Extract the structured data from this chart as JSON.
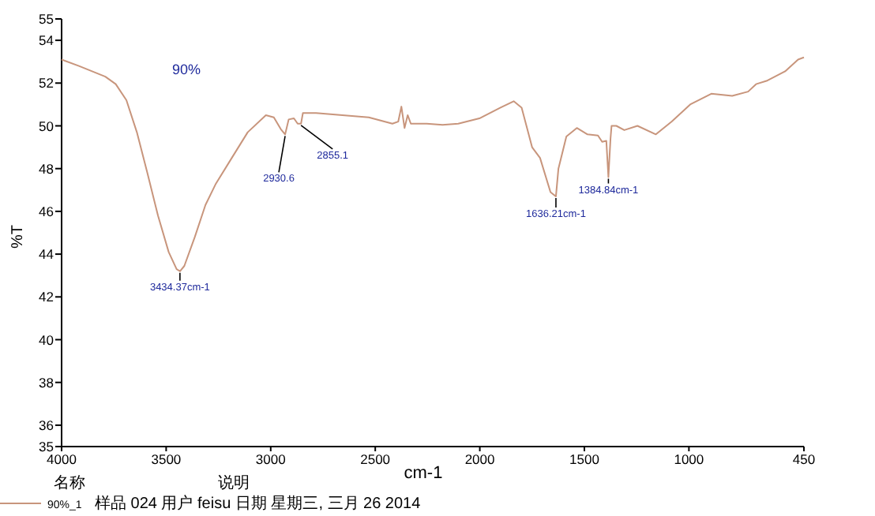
{
  "chart_data": {
    "type": "line",
    "title": "90%",
    "xlabel": "cm-1",
    "ylabel": "%T",
    "xlim": [
      4000,
      450
    ],
    "ylim": [
      35,
      55
    ],
    "xticks": [
      4000,
      3500,
      3000,
      2500,
      2000,
      1500,
      1000,
      450
    ],
    "yticks": [
      35,
      36,
      38,
      40,
      42,
      44,
      46,
      48,
      50,
      52,
      54,
      55
    ],
    "legend": "bottom",
    "series": [
      {
        "name": "90%_1",
        "color": "#c8957c",
        "x": [
          4000,
          3917,
          3791,
          3741,
          3690,
          3640,
          3590,
          3539,
          3488,
          3450,
          3434,
          3413,
          3363,
          3312,
          3262,
          3186,
          3110,
          3023,
          2985,
          2952,
          2931,
          2914,
          2889,
          2871,
          2855,
          2846,
          2783,
          2531,
          2418,
          2390,
          2375,
          2360,
          2345,
          2330,
          2254,
          2178,
          2103,
          2002,
          1901,
          1838,
          1800,
          1750,
          1712,
          1662,
          1636,
          1624,
          1586,
          1536,
          1485,
          1435,
          1415,
          1395,
          1385,
          1375,
          1370,
          1347,
          1309,
          1246,
          1158,
          1082,
          994,
          893,
          793,
          717,
          679,
          629,
          540,
          478,
          450
        ],
        "values": [
          53.1,
          52.8,
          52.3,
          51.95,
          51.2,
          49.7,
          47.8,
          45.8,
          44.1,
          43.3,
          43.2,
          43.45,
          44.8,
          46.3,
          47.3,
          48.5,
          49.7,
          50.5,
          50.4,
          49.85,
          49.6,
          50.3,
          50.35,
          50.1,
          50.1,
          50.6,
          50.6,
          50.4,
          50.1,
          50.2,
          50.9,
          49.9,
          50.5,
          50.1,
          50.1,
          50.05,
          50.1,
          50.35,
          50.85,
          51.15,
          50.85,
          49.0,
          48.5,
          46.9,
          46.7,
          48.0,
          49.5,
          49.9,
          49.6,
          49.55,
          49.25,
          49.3,
          47.6,
          49.4,
          50.0,
          50.0,
          49.8,
          50.0,
          49.6,
          50.2,
          51.0,
          51.5,
          51.4,
          51.6,
          51.95,
          52.1,
          52.55,
          53.1,
          53.2
        ]
      }
    ],
    "annotations": [
      {
        "text": "3434.37cm-1",
        "x": 3434,
        "y": 43.2
      },
      {
        "text": "2930.6",
        "x": 2931,
        "y": 49.6
      },
      {
        "text": "2855.1",
        "x": 2855,
        "y": 50.1
      },
      {
        "text": "1636.21cm-1",
        "x": 1636,
        "y": 46.7
      },
      {
        "text": "1384.84cm-1",
        "x": 1385,
        "y": 47.6
      },
      "名称",
      "说明",
      "样品 024 用户 feisu 日期 星期三, 三月 26 2014"
    ]
  }
}
